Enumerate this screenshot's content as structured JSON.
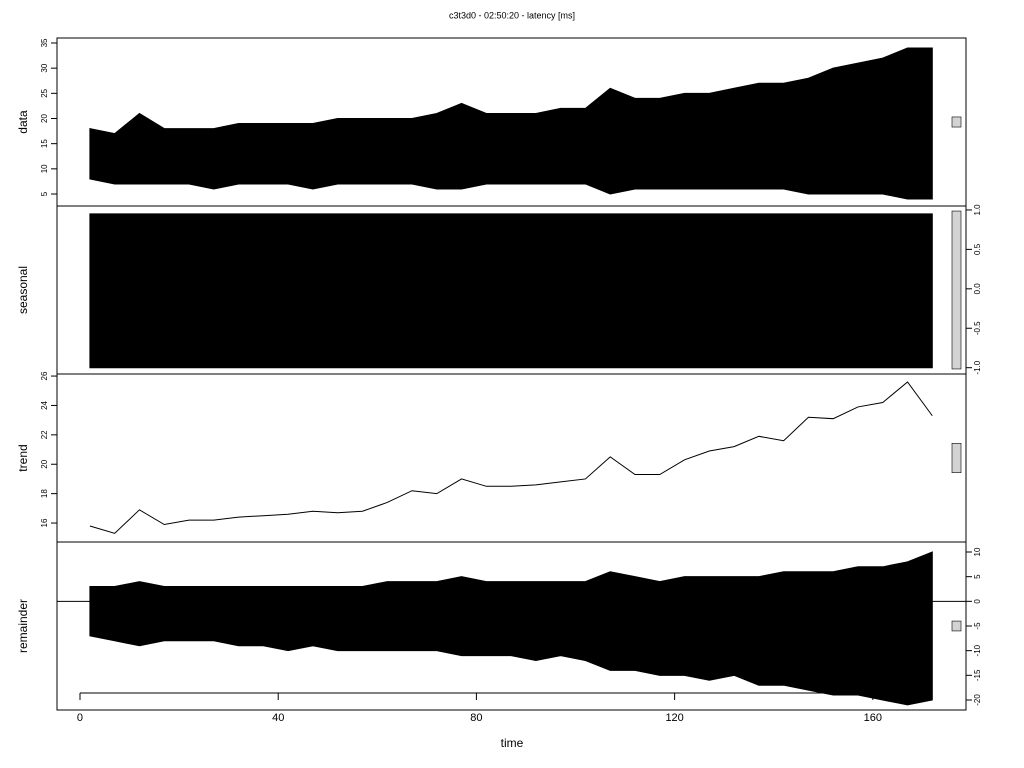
{
  "chart_data": [
    {
      "type": "band",
      "title": "c3t3d0 - 02:50:20 - latency [ms]",
      "ylabel": "data",
      "axis_side": "left",
      "x": [
        2,
        7,
        12,
        17,
        22,
        27,
        32,
        37,
        42,
        47,
        52,
        57,
        62,
        67,
        72,
        77,
        82,
        87,
        92,
        97,
        102,
        107,
        112,
        117,
        122,
        127,
        132,
        137,
        142,
        147,
        152,
        157,
        162,
        167,
        172
      ],
      "high": [
        18,
        17,
        21,
        18,
        18,
        18,
        19,
        19,
        19,
        19,
        20,
        20,
        20,
        20,
        21,
        23,
        21,
        21,
        21,
        22,
        22,
        26,
        24,
        24,
        25,
        25,
        26,
        27,
        27,
        28,
        30,
        31,
        32,
        34,
        34
      ],
      "low": [
        8,
        7,
        7,
        7,
        7,
        6,
        7,
        7,
        7,
        6,
        7,
        7,
        7,
        7,
        6,
        6,
        7,
        7,
        7,
        7,
        7,
        5,
        6,
        6,
        6,
        6,
        6,
        6,
        6,
        5,
        5,
        5,
        5,
        4,
        4
      ],
      "color": "#000000",
      "ylim": [
        2.62,
        35.99
      ],
      "yticks": [
        5,
        10,
        15,
        20,
        25,
        30,
        35
      ]
    },
    {
      "type": "band",
      "ylabel": "seasonal",
      "axis_side": "right",
      "x": [
        2,
        172
      ],
      "high": [
        0.95,
        0.95
      ],
      "low": [
        -1.0,
        -1.0
      ],
      "color": "#000000",
      "ylim": [
        -1.08,
        1.05
      ],
      "yticks": [
        {
          "value": -1.0,
          "label": "-1.0"
        },
        {
          "value": -0.5,
          "label": "-0.5"
        },
        {
          "value": 0.0,
          "label": "0.0"
        },
        {
          "value": 0.5,
          "label": "0.5"
        },
        {
          "value": 1.0,
          "label": "1.0"
        }
      ]
    },
    {
      "type": "line",
      "ylabel": "trend",
      "axis_side": "left",
      "x": [
        2,
        7,
        12,
        17,
        22,
        27,
        32,
        37,
        42,
        47,
        52,
        57,
        62,
        67,
        72,
        77,
        82,
        87,
        92,
        97,
        102,
        107,
        112,
        117,
        122,
        127,
        132,
        137,
        142,
        147,
        152,
        157,
        162,
        167,
        172
      ],
      "values": [
        15.8,
        15.3,
        16.9,
        15.9,
        16.2,
        16.2,
        16.4,
        16.5,
        16.6,
        16.8,
        16.7,
        16.8,
        17.4,
        18.2,
        18.0,
        19.0,
        18.5,
        18.5,
        18.6,
        18.8,
        19.0,
        20.5,
        19.3,
        19.3,
        20.3,
        20.9,
        21.2,
        21.9,
        21.6,
        23.2,
        23.1,
        23.9,
        24.2,
        25.6,
        23.3
      ],
      "color": "#000000",
      "ylim": [
        14.71,
        26.14
      ],
      "yticks": [
        16,
        18,
        20,
        22,
        24,
        26
      ]
    },
    {
      "type": "band",
      "ylabel": "remainder",
      "axis_side": "right",
      "baseline": 0,
      "x": [
        2,
        7,
        12,
        17,
        22,
        27,
        32,
        37,
        42,
        47,
        52,
        57,
        62,
        67,
        72,
        77,
        82,
        87,
        92,
        97,
        102,
        107,
        112,
        117,
        122,
        127,
        132,
        137,
        142,
        147,
        152,
        157,
        162,
        167,
        172
      ],
      "high": [
        3,
        3,
        4,
        3,
        3,
        3,
        3,
        3,
        3,
        3,
        3,
        3,
        4,
        4,
        4,
        5,
        4,
        4,
        4,
        4,
        4,
        6,
        5,
        4,
        5,
        5,
        5,
        5,
        6,
        6,
        6,
        7,
        7,
        8,
        10
      ],
      "low": [
        -7,
        -8,
        -9,
        -8,
        -8,
        -8,
        -9,
        -9,
        -10,
        -9,
        -10,
        -10,
        -10,
        -10,
        -10,
        -11,
        -11,
        -11,
        -12,
        -11,
        -12,
        -14,
        -14,
        -15,
        -15,
        -16,
        -15,
        -17,
        -17,
        -18,
        -19,
        -19,
        -20,
        -21,
        -20
      ],
      "color": "#000000",
      "ylim": [
        -22.03,
        12.03
      ],
      "yticks": [
        -20,
        -15,
        -10,
        -5,
        0,
        5,
        10
      ],
      "xlabel": "time",
      "xlim": [
        -4.64,
        178.8
      ],
      "xticks": [
        0,
        40,
        80,
        120,
        160
      ]
    }
  ]
}
